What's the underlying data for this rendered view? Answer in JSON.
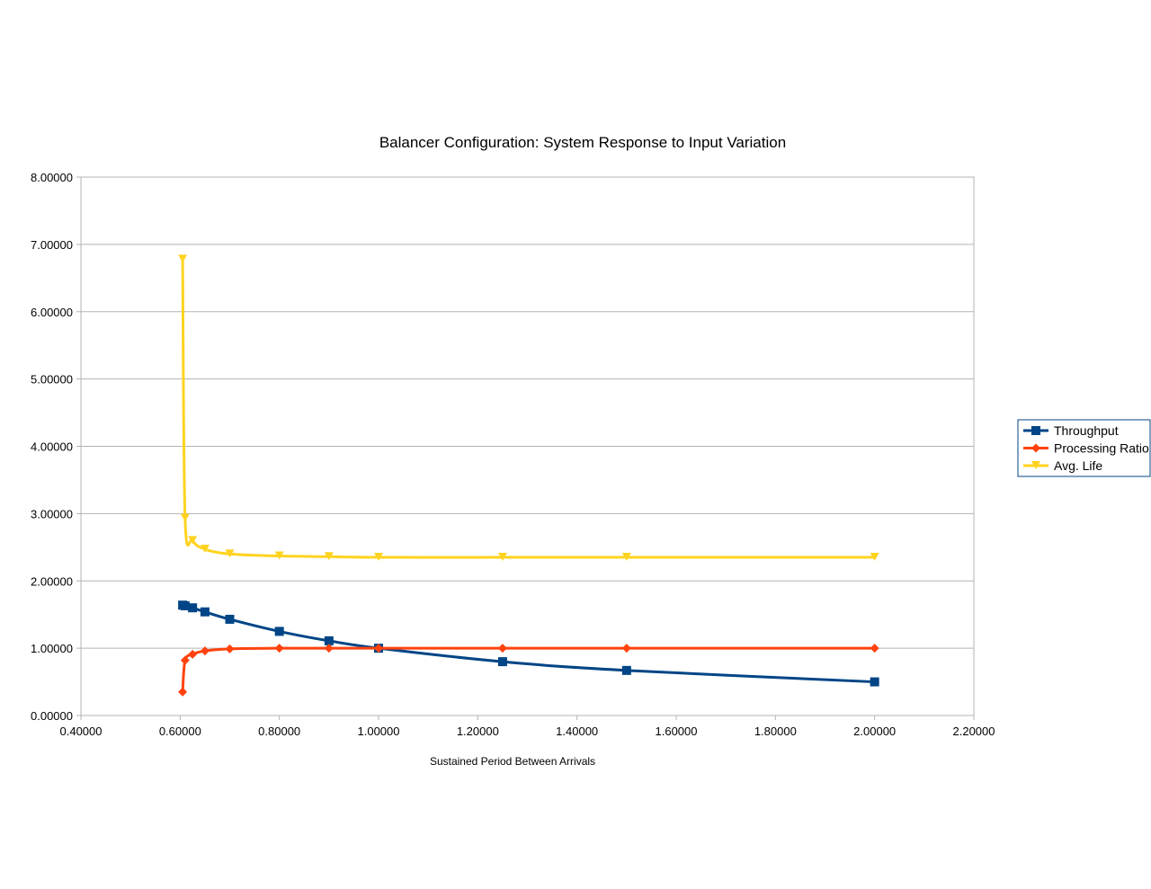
{
  "chart_data": {
    "type": "line",
    "title": "Balancer Configuration: System Response to Input Variation",
    "xlabel": "Sustained Period Between Arrivals",
    "ylabel": "",
    "xlim": [
      0.4,
      2.2
    ],
    "ylim": [
      0,
      8
    ],
    "x_ticks": [
      "0.40000",
      "0.60000",
      "0.80000",
      "1.00000",
      "1.20000",
      "1.40000",
      "1.60000",
      "1.80000",
      "2.00000",
      "2.20000"
    ],
    "y_ticks": [
      "0.00000",
      "1.00000",
      "2.00000",
      "3.00000",
      "4.00000",
      "5.00000",
      "6.00000",
      "7.00000",
      "8.00000"
    ],
    "grid": "horizontal",
    "legend_position": "right",
    "series": [
      {
        "name": "Throughput",
        "color": "#004586",
        "marker": "square",
        "points": [
          [
            0.605,
            1.64
          ],
          [
            0.61,
            1.63
          ],
          [
            0.625,
            1.6
          ],
          [
            0.65,
            1.54
          ],
          [
            0.7,
            1.43
          ],
          [
            0.8,
            1.25
          ],
          [
            0.9,
            1.11
          ],
          [
            1.0,
            1.0
          ],
          [
            1.25,
            0.8
          ],
          [
            1.5,
            0.67
          ],
          [
            2.0,
            0.5
          ]
        ]
      },
      {
        "name": "Processing Ratio",
        "color": "#ff420e",
        "marker": "diamond",
        "points": [
          [
            0.605,
            0.35
          ],
          [
            0.61,
            0.82
          ],
          [
            0.625,
            0.91
          ],
          [
            0.65,
            0.96
          ],
          [
            0.7,
            0.99
          ],
          [
            0.8,
            1.0
          ],
          [
            0.9,
            1.0
          ],
          [
            1.0,
            1.0
          ],
          [
            1.25,
            1.0
          ],
          [
            1.5,
            1.0
          ],
          [
            2.0,
            1.0
          ]
        ]
      },
      {
        "name": "Avg. Life",
        "color": "#ffd320",
        "marker": "triangle-down",
        "points": [
          [
            0.605,
            6.78
          ],
          [
            0.61,
            2.93
          ],
          [
            0.625,
            2.6
          ],
          [
            0.65,
            2.47
          ],
          [
            0.7,
            2.4
          ],
          [
            0.8,
            2.37
          ],
          [
            0.9,
            2.36
          ],
          [
            1.0,
            2.35
          ],
          [
            1.25,
            2.35
          ],
          [
            1.5,
            2.35
          ],
          [
            2.0,
            2.35
          ]
        ]
      }
    ]
  }
}
